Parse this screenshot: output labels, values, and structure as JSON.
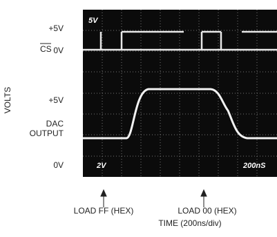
{
  "left_labels": {
    "cs_high": "+5V",
    "cs_name": "CS",
    "cs_low": "0V",
    "volts": "VOLTS",
    "dac_high": "+5V",
    "dac_name_1": "DAC",
    "dac_name_2": "OUTPUT",
    "dac_low": "0V"
  },
  "scope_labels": {
    "cs_scale": "5V",
    "dac_scale": "2V",
    "time_scale": "200nS"
  },
  "markers": [
    {
      "label": "LOAD FF (HEX)"
    },
    {
      "label": "LOAD 00 (HEX)"
    }
  ],
  "x_axis_label": "TIME (200ns/div)"
}
